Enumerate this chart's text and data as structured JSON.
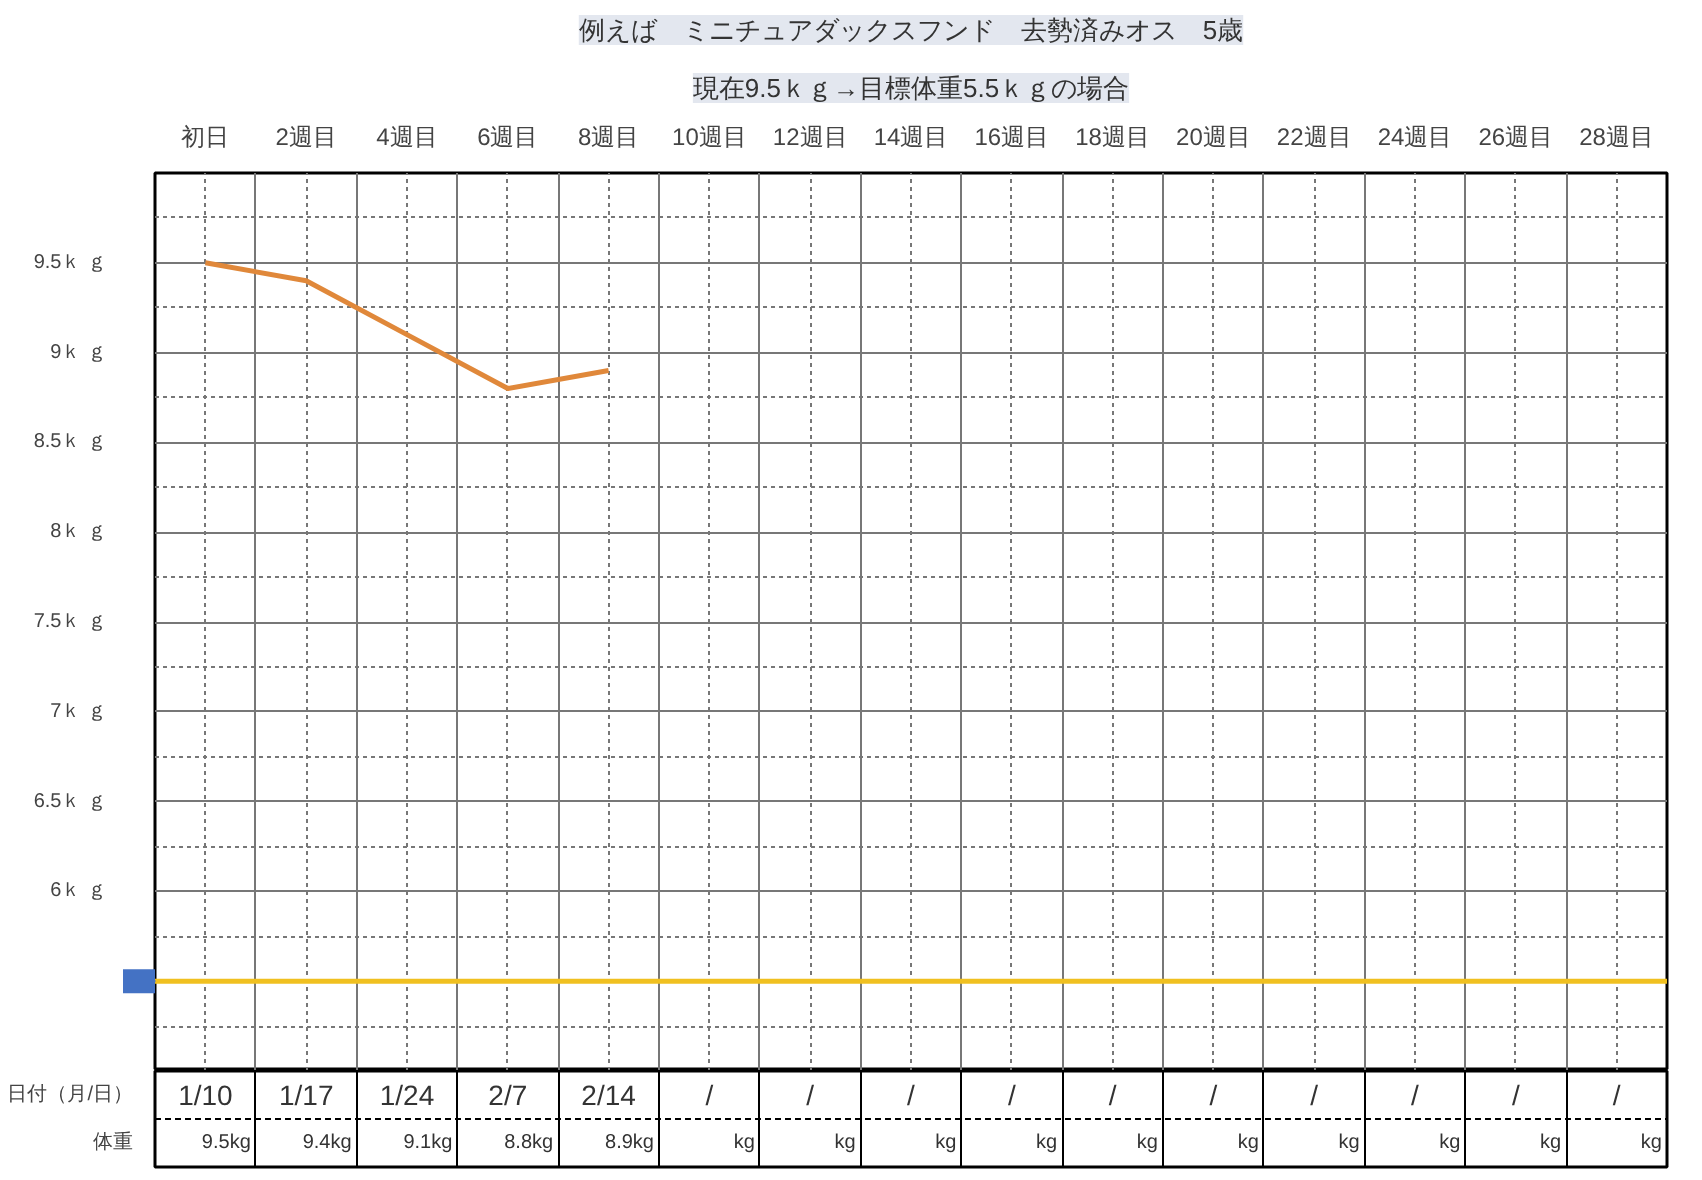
{
  "chart_data": {
    "type": "line",
    "title": "例えば　ミニチュアダックスフンド　去勢済みオス　5歳",
    "subtitle": "現在9.5ｋｇ→目標体重5.5ｋｇの場合",
    "categories": [
      "初日",
      "2週目",
      "4週目",
      "6週目",
      "8週目",
      "10週目",
      "12週目",
      "14週目",
      "16週目",
      "18週目",
      "20週目",
      "22週目",
      "24週目",
      "26週目",
      "28週目"
    ],
    "series": [
      {
        "color": "#e0883a",
        "values": [
          9.5,
          9.4,
          9.1,
          8.8,
          8.9,
          null,
          null,
          null,
          null,
          null,
          null,
          null,
          null,
          null,
          null
        ],
        "value_labels": [
          "9.5kg",
          "9.4kg",
          "9.1kg",
          "8.8kg",
          "8.9kg",
          "kg",
          "kg",
          "kg",
          "kg",
          "kg",
          "kg",
          "kg",
          "kg",
          "kg",
          "kg"
        ]
      }
    ],
    "ylim": [
      5,
      10
    ],
    "yticks": [
      {
        "value": 6,
        "label": "6ｋ ｇ"
      },
      {
        "value": 6.5,
        "label": "6.5ｋ ｇ"
      },
      {
        "value": 7,
        "label": "7ｋ ｇ"
      },
      {
        "value": 7.5,
        "label": "7.5ｋ ｇ"
      },
      {
        "value": 8,
        "label": "8ｋ ｇ"
      },
      {
        "value": 8.5,
        "label": "8.5ｋ ｇ"
      },
      {
        "value": 9,
        "label": "9ｋ ｇ"
      },
      {
        "value": 9.5,
        "label": "9.5ｋ ｇ"
      }
    ],
    "ref_lines": [
      {
        "axis": "y",
        "value": 5.5,
        "color": "#f0c020"
      }
    ],
    "grid": true,
    "marker": "none",
    "line_style": "solid",
    "annotations": [
      "日付（月/日）",
      "体重",
      "1/10",
      "1/17",
      "1/24",
      "2/7",
      "2/14",
      "/",
      "/",
      "/",
      "/",
      "/",
      "/",
      "/",
      "/",
      "/",
      "/"
    ]
  }
}
